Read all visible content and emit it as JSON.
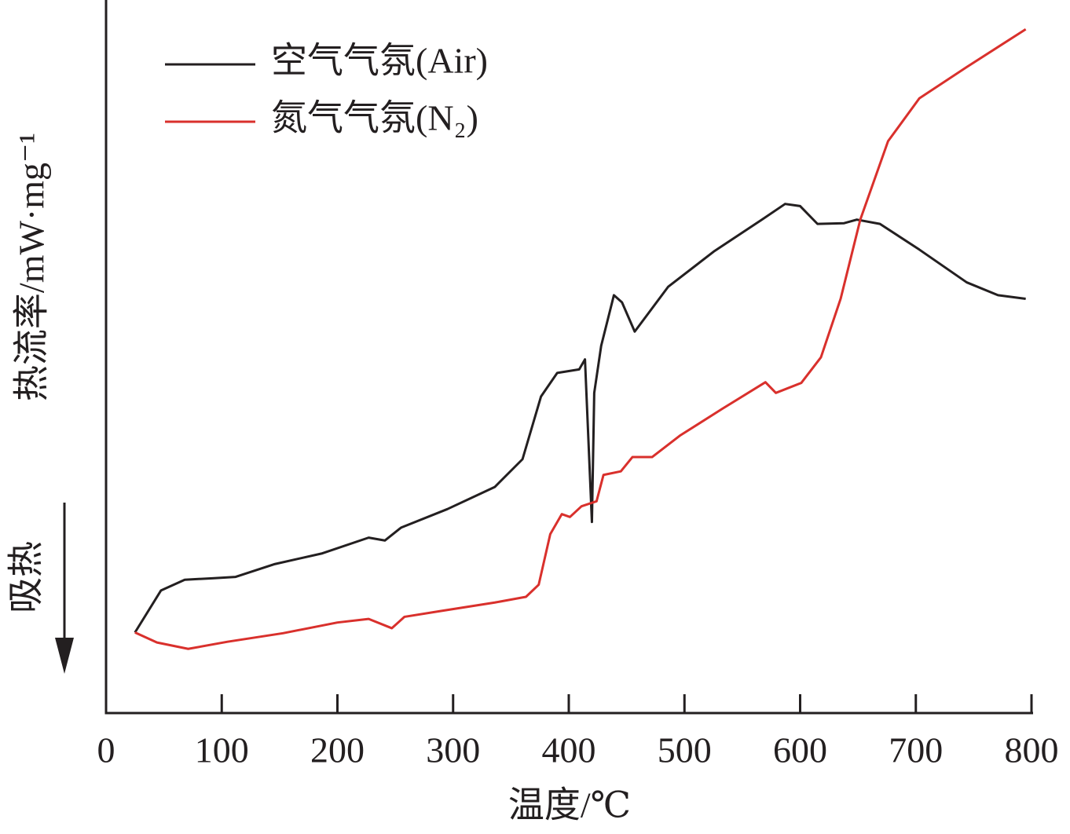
{
  "chart_data": {
    "type": "line",
    "xlabel": "温度/℃",
    "ylabel": "热流率/mW·mg⁻¹",
    "annotation": "吸热",
    "xlim": [
      0,
      800
    ],
    "xticks": [
      0,
      100,
      200,
      300,
      400,
      500,
      600,
      700,
      800
    ],
    "ylim": [
      0,
      100
    ],
    "legend": "upper left",
    "series": [
      {
        "name": "空气气氛(Air)",
        "color": "#231f20",
        "x": [
          25,
          47.5,
          68,
          92,
          112,
          146,
          187,
          227,
          241,
          255,
          295,
          336,
          360,
          376,
          390,
          409,
          414,
          420,
          422,
          428,
          439,
          446,
          457,
          486,
          526,
          567,
          587,
          600,
          615,
          638,
          649,
          669,
          703,
          744,
          771,
          795
        ],
        "values": [
          11.3,
          17.2,
          18.7,
          18.9,
          19.1,
          20.9,
          22.4,
          24.6,
          24.2,
          26.0,
          28.6,
          31.7,
          35.6,
          44.4,
          47.7,
          48.2,
          49.6,
          26.8,
          44.9,
          51.5,
          58.6,
          57.6,
          53.5,
          59.8,
          64.8,
          69.2,
          71.4,
          71.1,
          68.6,
          68.7,
          69.2,
          68.6,
          65.0,
          60.4,
          58.6,
          58.1
        ]
      },
      {
        "name": "氮气气氛(N₂)",
        "color": "#d9302c",
        "x": [
          25,
          44,
          71,
          105,
          153,
          200,
          227,
          247,
          258,
          289,
          336,
          363,
          374,
          384,
          394,
          401,
          411,
          424,
          430,
          445,
          455,
          472,
          496,
          533,
          570,
          579,
          601,
          618,
          635,
          652,
          676,
          703,
          744,
          795
        ],
        "values": [
          11.3,
          9.9,
          9.0,
          10.0,
          11.2,
          12.7,
          13.2,
          11.9,
          13.5,
          14.3,
          15.5,
          16.3,
          18.0,
          25.1,
          27.9,
          27.5,
          29.0,
          29.7,
          33.4,
          33.9,
          35.9,
          35.9,
          38.9,
          42.7,
          46.4,
          44.9,
          46.3,
          49.9,
          58.1,
          69.2,
          80.2,
          86.2,
          90.6,
          95.9
        ]
      }
    ]
  }
}
